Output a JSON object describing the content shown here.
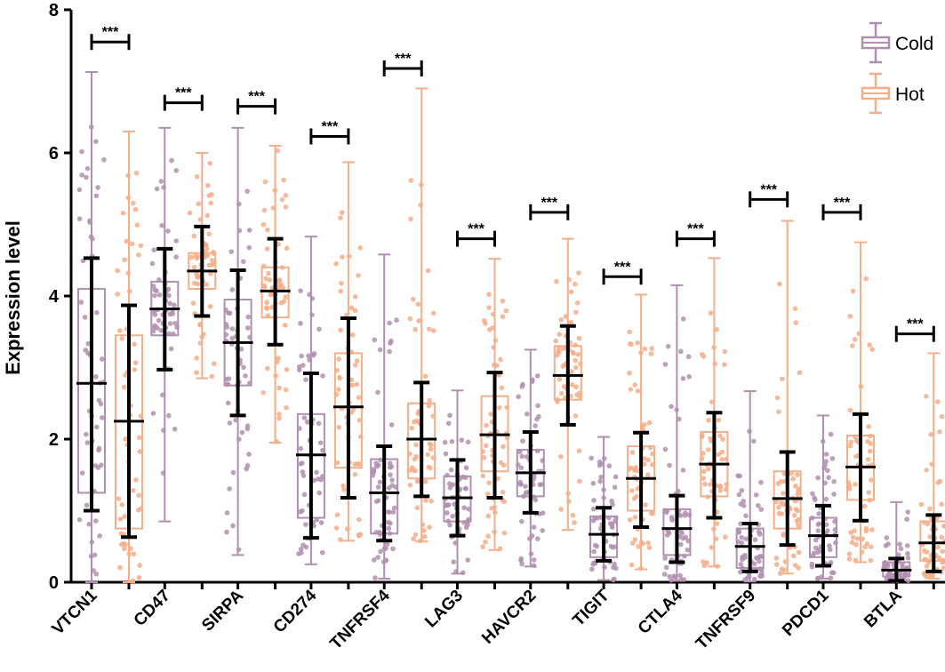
{
  "chart_data": {
    "type": "box",
    "title": "",
    "xlabel": "",
    "ylabel": "Expression level",
    "ylim": [
      0,
      8
    ],
    "yticks": [
      0,
      2,
      4,
      6,
      8
    ],
    "ytick_labels": [
      "0",
      "2",
      "4",
      "6",
      "8"
    ],
    "categories": [
      "VTCN1",
      "CD47",
      "SIRPA",
      "CD274",
      "TNFRSF4",
      "LAG3",
      "HAVCR2",
      "TIGIT",
      "CTLA4",
      "TNFRSF9",
      "PDCD1",
      "BTLA"
    ],
    "series": [
      {
        "name": "Cold",
        "color": "#b08fb0",
        "min": [
          0.0,
          0.85,
          0.38,
          0.25,
          0.05,
          0.12,
          0.22,
          0.03,
          0.02,
          0.01,
          0.05,
          0.01
        ],
        "q1": [
          1.25,
          3.45,
          2.75,
          0.9,
          0.68,
          0.85,
          1.2,
          0.35,
          0.38,
          0.2,
          0.35,
          0.08
        ],
        "median": [
          2.78,
          3.82,
          3.35,
          1.78,
          1.25,
          1.18,
          1.53,
          0.67,
          0.75,
          0.5,
          0.65,
          0.17
        ],
        "q3": [
          4.1,
          4.2,
          3.95,
          2.35,
          1.72,
          1.48,
          1.85,
          0.92,
          1.02,
          0.75,
          0.9,
          0.28
        ],
        "max": [
          7.13,
          6.35,
          6.35,
          4.83,
          4.58,
          2.68,
          3.25,
          2.03,
          4.15,
          2.67,
          2.33,
          1.12
        ],
        "err_low": [
          1.0,
          2.97,
          2.33,
          0.62,
          0.58,
          0.65,
          0.97,
          0.3,
          0.28,
          0.15,
          0.23,
          0.02
        ],
        "err_high": [
          4.53,
          4.66,
          4.36,
          2.92,
          1.9,
          1.71,
          2.1,
          1.04,
          1.21,
          0.82,
          1.07,
          0.33
        ]
      },
      {
        "name": "Hot",
        "color": "#f4ae88",
        "min": [
          0.0,
          2.85,
          1.95,
          0.58,
          0.57,
          0.45,
          0.73,
          0.18,
          0.22,
          0.12,
          0.28,
          0.05
        ],
        "q1": [
          0.75,
          4.1,
          3.7,
          1.6,
          1.45,
          1.55,
          2.55,
          1.0,
          1.2,
          0.75,
          1.15,
          0.3
        ],
        "median": [
          2.25,
          4.35,
          4.07,
          2.45,
          2.0,
          2.06,
          2.89,
          1.45,
          1.65,
          1.17,
          1.61,
          0.55
        ],
        "q3": [
          3.45,
          4.6,
          4.4,
          3.2,
          2.5,
          2.6,
          3.3,
          1.9,
          2.1,
          1.55,
          2.05,
          0.85
        ],
        "max": [
          6.3,
          6.0,
          6.1,
          5.87,
          6.9,
          4.52,
          4.8,
          4.02,
          4.53,
          5.05,
          4.75,
          3.2
        ],
        "err_low": [
          0.63,
          3.72,
          3.32,
          1.18,
          1.2,
          1.18,
          2.2,
          0.77,
          0.9,
          0.52,
          0.86,
          0.15
        ],
        "err_high": [
          3.87,
          4.97,
          4.8,
          3.69,
          2.79,
          2.93,
          3.58,
          2.09,
          2.37,
          1.82,
          2.35,
          0.94
        ]
      }
    ],
    "annotations": [
      {
        "text": "***",
        "category": "VTCN1",
        "y": 7.55
      },
      {
        "text": "***",
        "category": "CD47",
        "y": 6.7
      },
      {
        "text": "***",
        "category": "SIRPA",
        "y": 6.65
      },
      {
        "text": "***",
        "category": "CD274",
        "y": 6.23
      },
      {
        "text": "***",
        "category": "TNFRSF4",
        "y": 7.18
      },
      {
        "text": "***",
        "category": "LAG3",
        "y": 4.8
      },
      {
        "text": "***",
        "category": "HAVCR2",
        "y": 5.17
      },
      {
        "text": "***",
        "category": "TIGIT",
        "y": 4.27
      },
      {
        "text": "***",
        "category": "CTLA4",
        "y": 4.8
      },
      {
        "text": "***",
        "category": "TNFRSF9",
        "y": 5.35
      },
      {
        "text": "***",
        "category": "PDCD1",
        "y": 5.17
      },
      {
        "text": "***",
        "category": "BTLA",
        "y": 3.47
      }
    ],
    "legend": {
      "position": "top-right",
      "entries": [
        "Cold",
        "Hot"
      ]
    },
    "grid": false
  }
}
